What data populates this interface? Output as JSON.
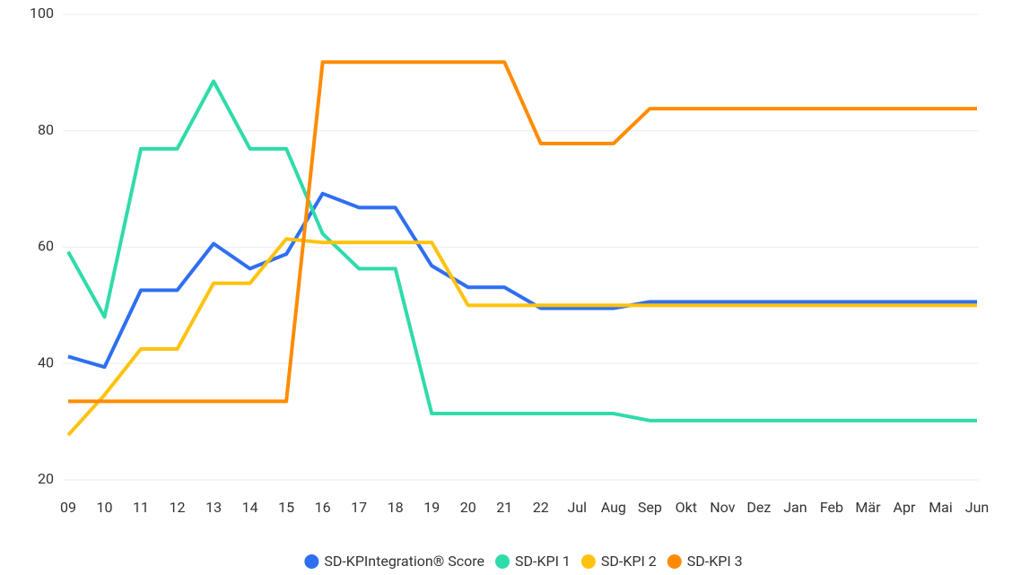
{
  "chart_data": {
    "type": "line",
    "categories": [
      "09",
      "10",
      "11",
      "12",
      "13",
      "14",
      "15",
      "16",
      "17",
      "18",
      "19",
      "20",
      "21",
      "22",
      "Jul",
      "Aug",
      "Sep",
      "Okt",
      "Nov",
      "Dez",
      "Jan",
      "Feb",
      "Mär",
      "Apr",
      "Mai",
      "Jun"
    ],
    "series": [
      {
        "name": "SD-KPIntegration® Score",
        "color": "#2e6ff2",
        "values": [
          41.2,
          39.4,
          52.6,
          52.6,
          60.6,
          56.3,
          58.8,
          69.2,
          66.8,
          66.8,
          56.8,
          53.1,
          53.1,
          49.5,
          49.5,
          49.5,
          50.6,
          50.6,
          50.6,
          50.6,
          50.6,
          50.6,
          50.6,
          50.6,
          50.6,
          50.6
        ]
      },
      {
        "name": "SD-KPI 1",
        "color": "#2fdbaa",
        "values": [
          59.2,
          48,
          76.9,
          76.9,
          88.5,
          76.9,
          76.9,
          62.3,
          56.3,
          56.3,
          31.4,
          31.4,
          31.4,
          31.4,
          31.4,
          31.4,
          30.2,
          30.2,
          30.2,
          30.2,
          30.2,
          30.2,
          30.2,
          30.2,
          30.2,
          30.2
        ]
      },
      {
        "name": "SD-KPI 2",
        "color": "#ffc20e",
        "values": [
          27.7,
          34.6,
          42.5,
          42.5,
          53.8,
          53.8,
          61.4,
          60.8,
          60.8,
          60.8,
          60.8,
          50,
          50,
          50,
          50,
          50,
          50,
          50,
          50,
          50,
          50,
          50,
          50,
          50,
          50,
          50
        ]
      },
      {
        "name": "SD-KPI 3",
        "color": "#ff8c00",
        "values": [
          33.5,
          33.5,
          33.5,
          33.5,
          33.5,
          33.5,
          33.5,
          91.8,
          91.8,
          91.8,
          91.8,
          91.8,
          91.8,
          77.8,
          77.8,
          77.8,
          83.8,
          83.8,
          83.8,
          83.8,
          83.8,
          83.8,
          83.8,
          83.8,
          83.8,
          83.8
        ]
      }
    ],
    "ylim": [
      20,
      100
    ],
    "yticks": [
      20,
      40,
      60,
      80,
      100
    ],
    "grid": true,
    "legend": "bottom"
  }
}
